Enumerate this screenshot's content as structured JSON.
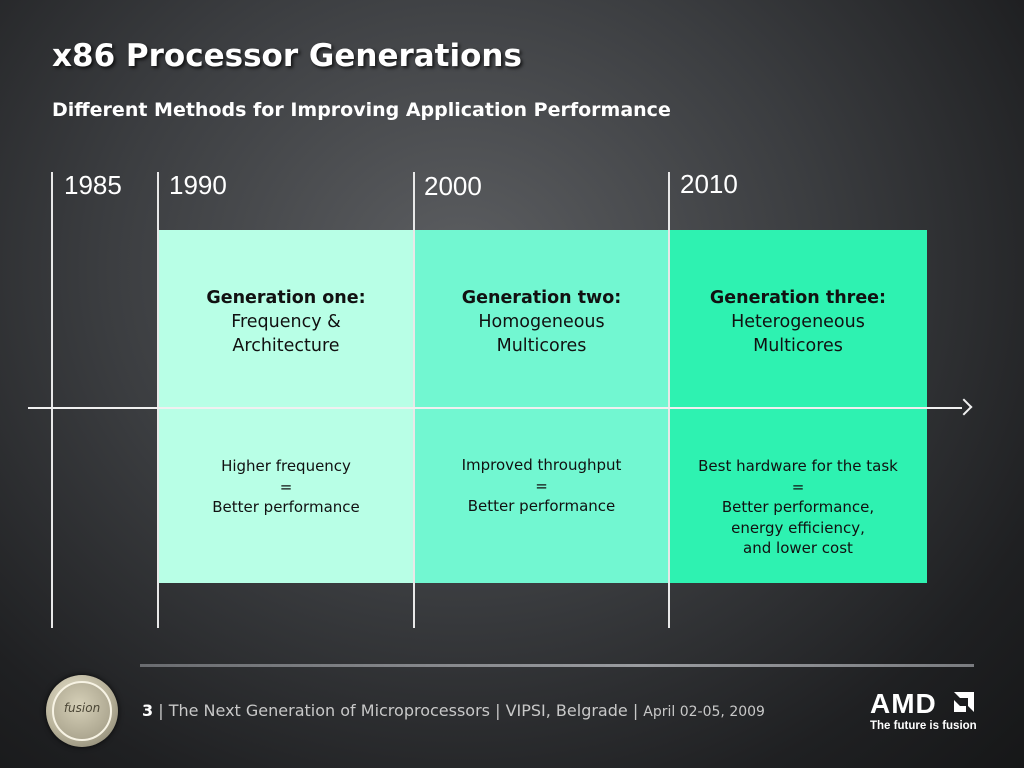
{
  "slide": {
    "title": "x86 Processor Generations",
    "subtitle": "Different Methods for Improving Application Performance"
  },
  "timeline": {
    "years": [
      "1985",
      "1990",
      "2000",
      "2010"
    ]
  },
  "generations": [
    {
      "heading": "Generation one:",
      "lines": [
        "Frequency &",
        "Architecture"
      ],
      "desc": [
        "Higher frequency",
        "=",
        "Better performance"
      ],
      "color": "#b8ffe6"
    },
    {
      "heading": "Generation two:",
      "lines": [
        "Homogeneous",
        "Multicores"
      ],
      "desc": [
        "Improved throughput",
        "=",
        "Better performance"
      ],
      "color": "#72f7d1"
    },
    {
      "heading": "Generation three:",
      "lines": [
        "Heterogeneous",
        "Multicores"
      ],
      "desc": [
        "Best hardware for the task",
        "=",
        "Better performance,",
        "energy efficiency,",
        "and lower cost"
      ],
      "color": "#2ef2b1"
    }
  ],
  "footer": {
    "page": "3",
    "text": " | The Next Generation of Microprocessors | VIPSI, Belgrade | ",
    "date": "April 02-05, 2009"
  },
  "branding": {
    "fusion_word": "fusion",
    "amd_word": "AMD",
    "tagline": "The future is fusion",
    "fusion_icon": "fusion-badge-icon",
    "amd_icon": "amd-arrow-icon"
  }
}
